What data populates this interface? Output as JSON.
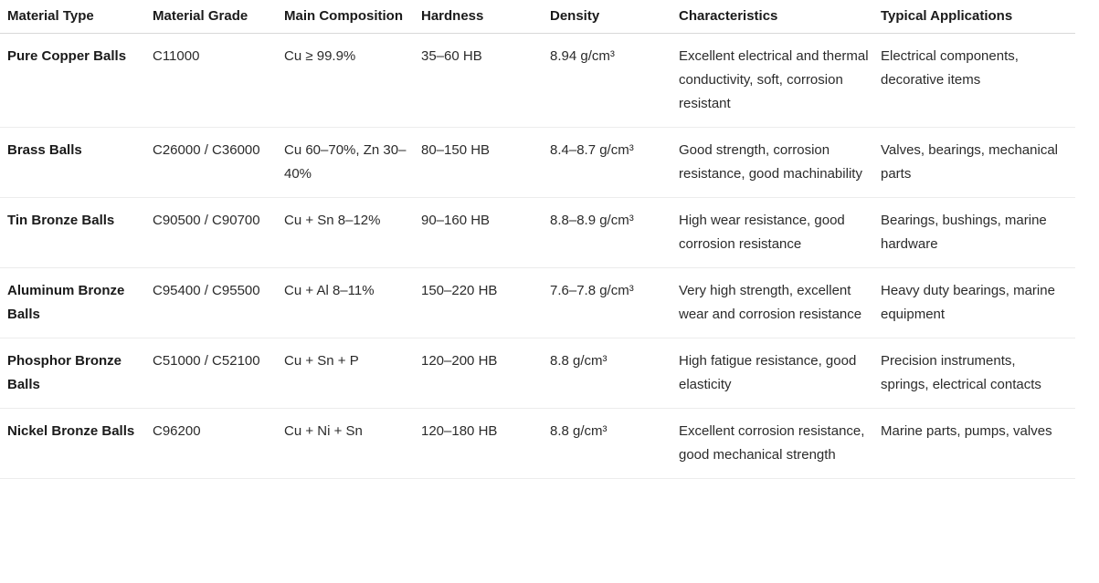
{
  "table": {
    "headers": [
      "Material Type",
      "Material Grade",
      "Main Composition",
      "Hardness",
      "Density",
      "Characteristics",
      "Typical Applications"
    ],
    "rows": [
      [
        "Pure Copper Balls",
        "C11000",
        "Cu ≥ 99.9%",
        "35–60 HB",
        "8.94 g/cm³",
        "Excellent electrical and thermal conductivity, soft, corrosion resistant",
        "Electrical components, decorative items"
      ],
      [
        "Brass Balls",
        "C26000 / C36000",
        "Cu 60–70%, Zn 30–40%",
        "80–150 HB",
        "8.4–8.7 g/cm³",
        "Good strength, corrosion resistance, good machinability",
        "Valves, bearings, mechanical parts"
      ],
      [
        "Tin Bronze Balls",
        "C90500 / C90700",
        "Cu + Sn 8–12%",
        "90–160 HB",
        "8.8–8.9 g/cm³",
        "High wear resistance, good corrosion resistance",
        "Bearings, bushings, marine hardware"
      ],
      [
        "Aluminum Bronze Balls",
        "C95400 / C95500",
        "Cu + Al 8–11%",
        "150–220 HB",
        "7.6–7.8 g/cm³",
        "Very high strength, excellent wear and corrosion resistance",
        "Heavy duty bearings, marine equipment"
      ],
      [
        "Phosphor Bronze Balls",
        "C51000 / C52100",
        "Cu + Sn + P",
        "120–200 HB",
        "8.8 g/cm³",
        "High fatigue resistance, good elasticity",
        "Precision instruments, springs, electrical contacts"
      ],
      [
        "Nickel Bronze Balls",
        "C96200",
        "Cu + Ni + Sn",
        "120–180 HB",
        "8.8 g/cm³",
        "Excellent corrosion resistance, good mechanical strength",
        "Marine parts, pumps, valves"
      ]
    ]
  }
}
